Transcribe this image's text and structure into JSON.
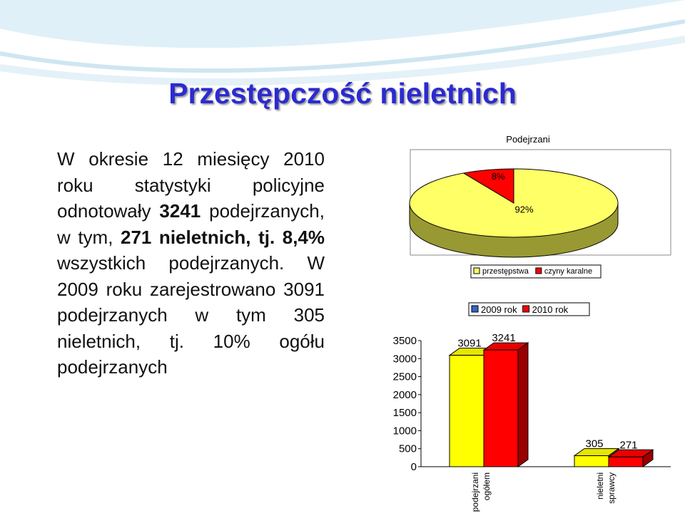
{
  "title": "Przestępczość nieletnich",
  "body": [
    {
      "text": "W okresie 12 miesięcy 2010 roku statystyki policyjne odnotowały ",
      "bold": false
    },
    {
      "text": "3241",
      "bold": true
    },
    {
      "text": " podejrzanych, w tym, ",
      "bold": false
    },
    {
      "text": "271 nieletnich, tj. 8,4%",
      "bold": true
    },
    {
      "text": " wszystkich podejrzanych. W 2009 roku zarejestrowano 3091 podejrzanych w tym 305 nieletnich, tj. 10% ogółu podejrzanych",
      "bold": false
    }
  ],
  "chart_data": [
    {
      "type": "pie",
      "title": "Podejrzani",
      "categories": [
        "przestępstwa",
        "czyny karalne"
      ],
      "values": [
        92,
        8
      ],
      "value_labels": [
        "92%",
        "8%"
      ],
      "colors": [
        "#ffff66",
        "#ff0000"
      ],
      "depth_color": "#999933"
    },
    {
      "type": "bar",
      "categories": [
        [
          "podejrzani",
          "ogółem"
        ],
        [
          "nieletni",
          "sprawcy"
        ]
      ],
      "series": [
        {
          "name": "2009 rok",
          "color": "#ffff00",
          "legend_color": "#3366cc",
          "values": [
            3091,
            305
          ]
        },
        {
          "name": "2010 rok",
          "color": "#ff0000",
          "legend_color": "#ff0000",
          "values": [
            3241,
            271
          ]
        }
      ],
      "ylim": [
        0,
        3500
      ],
      "yticks": [
        0,
        500,
        1000,
        1500,
        2000,
        2500,
        3000,
        3500
      ],
      "grid": false
    }
  ]
}
